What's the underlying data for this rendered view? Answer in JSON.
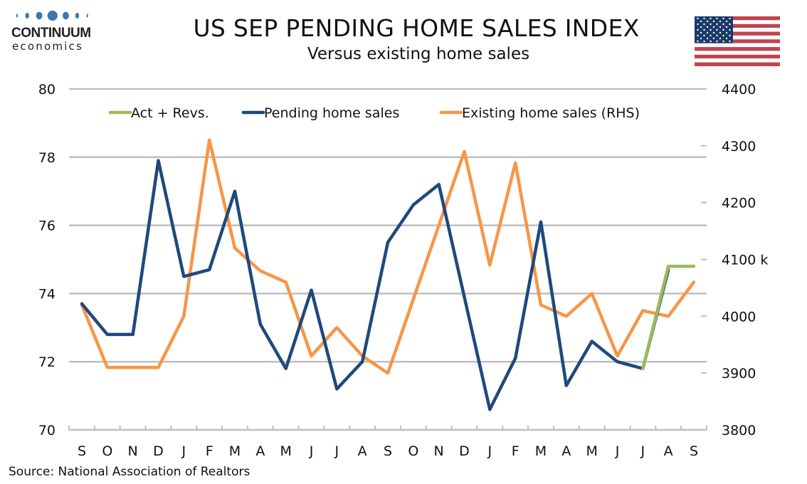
{
  "header": {
    "logo_brand": "CONTINUUM",
    "logo_sub": "economics",
    "title": "US SEP PENDING HOME SALES INDEX",
    "subtitle": "Versus existing home sales",
    "flag_icon": "us-flag-icon"
  },
  "footer": {
    "source": "Source: National Association of Realtors"
  },
  "colors": {
    "pending": "#1f497d",
    "existing": "#f79646",
    "act_revs": "#9bbb59",
    "grid": "#bfbfbf",
    "logo_blue": "#3a78b0"
  },
  "chart_data": {
    "type": "line",
    "title": "US SEP PENDING HOME SALES INDEX",
    "subtitle": "Versus existing home sales",
    "categories": [
      "S",
      "O",
      "N",
      "D",
      "J",
      "F",
      "M",
      "A",
      "M",
      "J",
      "J",
      "A",
      "S",
      "O",
      "N",
      "D",
      "J",
      "F",
      "M",
      "A",
      "M",
      "J",
      "J",
      "A",
      "S"
    ],
    "left_axis": {
      "ylim": [
        70,
        80
      ],
      "ticks": [
        70,
        72,
        74,
        76,
        78,
        80
      ],
      "tick_labels": [
        "70",
        "72",
        "74",
        "76",
        "78",
        "80"
      ]
    },
    "right_axis": {
      "ylim": [
        3800,
        4400
      ],
      "ticks": [
        3800,
        3900,
        4000,
        4100,
        4200,
        4300,
        4400
      ],
      "tick_labels": [
        "3800",
        "3900",
        "4000",
        "4100 k",
        "4200",
        "4300",
        "4400"
      ]
    },
    "grid": true,
    "legend_position": "top",
    "series": [
      {
        "name": "Act + Revs.",
        "axis": "left",
        "color": "#9bbb59",
        "values": [
          null,
          null,
          null,
          null,
          null,
          null,
          null,
          null,
          null,
          null,
          null,
          null,
          null,
          null,
          null,
          null,
          null,
          null,
          null,
          null,
          null,
          null,
          71.8,
          74.8,
          74.8
        ]
      },
      {
        "name": "Pending home sales",
        "axis": "left",
        "color": "#1f497d",
        "values": [
          73.7,
          72.8,
          72.8,
          77.9,
          74.5,
          74.7,
          77.0,
          73.1,
          71.8,
          74.1,
          71.2,
          72.0,
          75.5,
          76.6,
          77.2,
          73.9,
          70.6,
          72.1,
          76.1,
          71.3,
          72.6,
          72.0,
          71.8,
          74.7,
          null
        ]
      },
      {
        "name": "Existing home sales (RHS)",
        "axis": "right",
        "color": "#f79646",
        "values": [
          4020,
          3910,
          3910,
          3910,
          4000,
          4310,
          4120,
          4080,
          4060,
          3930,
          3980,
          3930,
          3900,
          4030,
          4160,
          4290,
          4090,
          4270,
          4020,
          4000,
          4040,
          3930,
          4010,
          4000,
          4060
        ]
      }
    ]
  }
}
